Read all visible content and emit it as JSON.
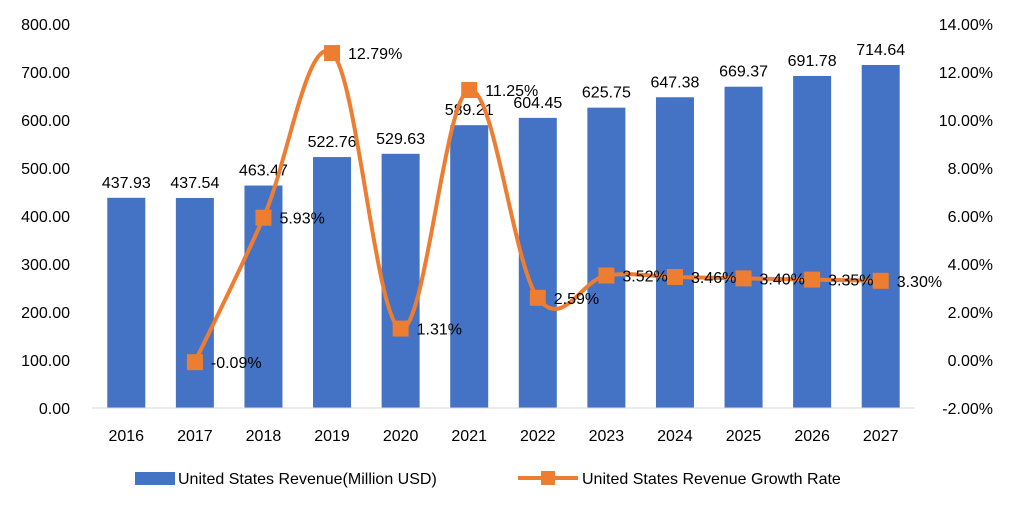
{
  "chart_data": {
    "type": "bar+line",
    "categories": [
      "2016",
      "2017",
      "2018",
      "2019",
      "2020",
      "2021",
      "2022",
      "2023",
      "2024",
      "2025",
      "2026",
      "2027"
    ],
    "series": [
      {
        "name": "United States Revenue(Million USD)",
        "type": "bar",
        "axis": "left",
        "values": [
          437.93,
          437.54,
          463.47,
          522.76,
          529.63,
          589.21,
          604.45,
          625.75,
          647.38,
          669.37,
          691.78,
          714.64
        ],
        "labels": [
          "437.93",
          "437.54",
          "463.47",
          "522.76",
          "529.63",
          "589.21",
          "604.45",
          "625.75",
          "647.38",
          "669.37",
          "691.78",
          "714.64"
        ],
        "color": "#4472C4"
      },
      {
        "name": "United States Revenue Growth Rate",
        "type": "line",
        "axis": "right",
        "values": [
          null,
          -0.09,
          5.93,
          12.79,
          1.31,
          11.25,
          2.59,
          3.52,
          3.46,
          3.4,
          3.35,
          3.3
        ],
        "labels": [
          "",
          "-0.09%",
          "5.93%",
          "12.79%",
          "1.31%",
          "11.25%",
          "2.59%",
          "3.52%",
          "3.46%",
          "3.40%",
          "3.35%",
          "3.30%"
        ],
        "color": "#ED7D31",
        "smooth": true
      }
    ],
    "ylim_left": [
      0,
      800
    ],
    "ylim_right": [
      -2,
      14
    ],
    "yticks_left": [
      "0.00",
      "100.00",
      "200.00",
      "300.00",
      "400.00",
      "500.00",
      "600.00",
      "700.00",
      "800.00"
    ],
    "yticks_right": [
      "-2.00%",
      "0.00%",
      "2.00%",
      "4.00%",
      "6.00%",
      "8.00%",
      "10.00%",
      "12.00%",
      "14.00%"
    ],
    "grid": false,
    "legend_position": "bottom"
  }
}
